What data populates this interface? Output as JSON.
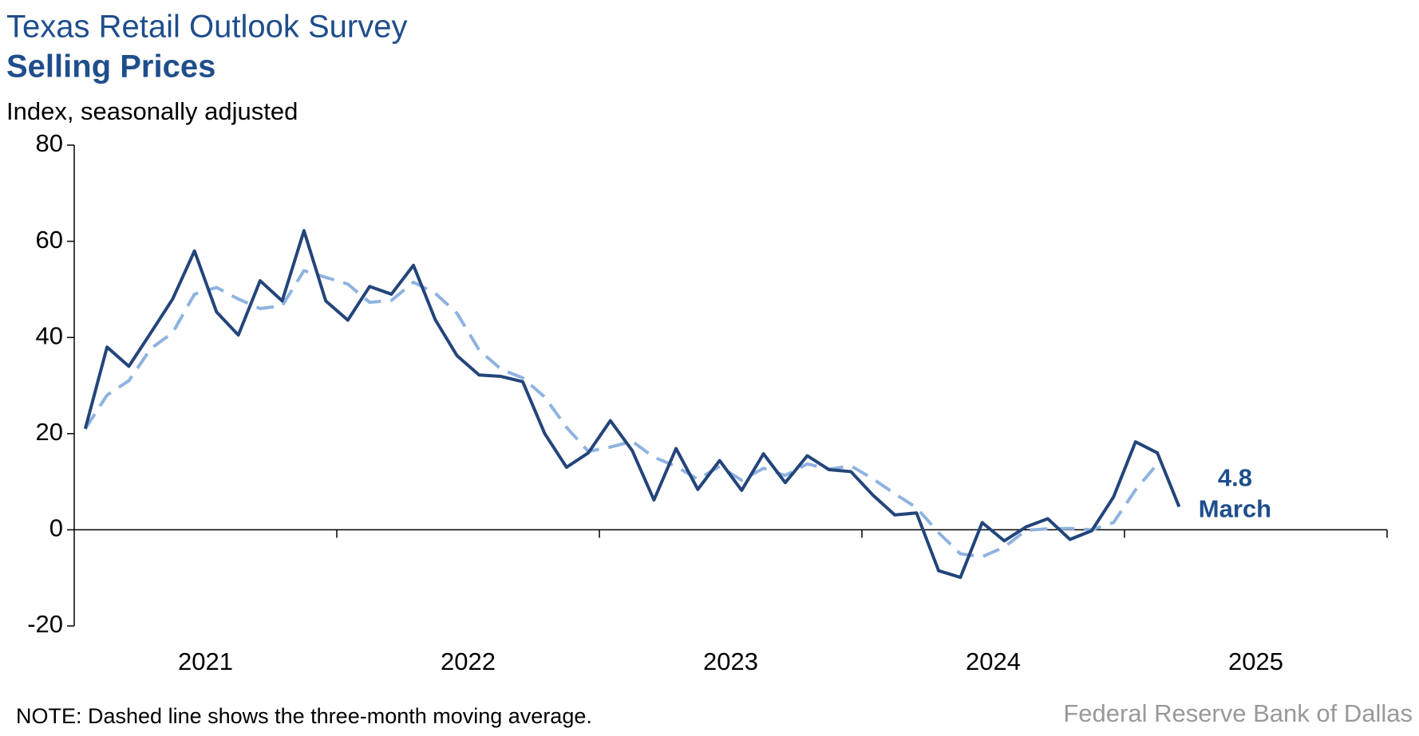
{
  "chart_data": {
    "type": "line",
    "title": "Texas Retail Outlook Survey",
    "subtitle": "Selling Prices",
    "y_axis_label": "Index, seasonally adjusted",
    "note": "NOTE: Dashed line shows the three-month moving average.",
    "source": "Federal Reserve Bank of Dallas",
    "annotation": "March",
    "x": [
      2021.042,
      2021.125,
      2021.208,
      2021.292,
      2021.375,
      2021.458,
      2021.542,
      2021.625,
      2021.708,
      2021.792,
      2021.875,
      2021.958,
      2022.042,
      2022.125,
      2022.208,
      2022.292,
      2022.375,
      2022.458,
      2022.542,
      2022.625,
      2022.708,
      2022.792,
      2022.875,
      2022.958,
      2023.042,
      2023.125,
      2023.208,
      2023.292,
      2023.375,
      2023.458,
      2023.542,
      2023.625,
      2023.708,
      2023.792,
      2023.875,
      2023.958,
      2024.042,
      2024.125,
      2024.208,
      2024.292,
      2024.375,
      2024.458,
      2024.542,
      2024.625,
      2024.708,
      2024.792,
      2024.875,
      2024.958,
      2025.042,
      2025.125,
      2025.208
    ],
    "series": [
      {
        "name": "Selling prices",
        "color": "#23457a",
        "dashed": false,
        "values": [
          21,
          38,
          34,
          41,
          48,
          58,
          45.3,
          40.5,
          51.8,
          47.6,
          62.2,
          47.6,
          43.6,
          50.6,
          49,
          55,
          43.7,
          36.2,
          32.2,
          31.9,
          30.8,
          20,
          13,
          16,
          22.7,
          16.5,
          6.2,
          16.9,
          8.4,
          14.4,
          8.2,
          15.8,
          9.8,
          15.4,
          12.5,
          12.1,
          7.2,
          3.1,
          3.5,
          -8.5,
          -9.9,
          1.5,
          -2.3,
          0.6,
          2.3,
          -2,
          -0.2,
          6.8,
          18.3,
          16,
          4.8
        ]
      },
      {
        "name": "Three-month moving average",
        "color": "#8fb3e0",
        "dashed": true,
        "values": [
          21,
          28,
          31,
          37.7,
          41,
          49,
          50.4,
          48,
          46,
          46.6,
          53.9,
          52.5,
          51.1,
          47.3,
          47.7,
          51.5,
          49.2,
          45,
          37.4,
          33.4,
          31.6,
          27.6,
          21.3,
          16.3,
          17.2,
          18.4,
          15.1,
          13.2,
          10.5,
          13.2,
          10.3,
          12.8,
          11.3,
          13.7,
          12.6,
          13.3,
          10.6,
          7.5,
          4.6,
          -0.6,
          -5,
          -5.6,
          -3.6,
          -0.1,
          0.2,
          0.3,
          0,
          1.5,
          8.3,
          13.7,
          null
        ]
      }
    ],
    "xlim": [
      2021,
      2026
    ],
    "xticks": [
      {
        "value": 2021.5,
        "label": "2021"
      },
      {
        "value": 2022.5,
        "label": "2022"
      },
      {
        "value": 2023.5,
        "label": "2023"
      },
      {
        "value": 2024.5,
        "label": "2024"
      },
      {
        "value": 2025.5,
        "label": "2025"
      }
    ],
    "ylim": [
      -20,
      80
    ],
    "yticks": [
      -20,
      0,
      20,
      40,
      60,
      80
    ],
    "grid": false
  }
}
